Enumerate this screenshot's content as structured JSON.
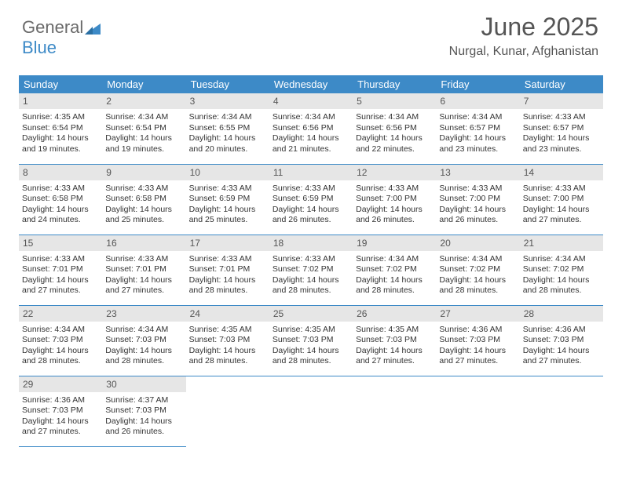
{
  "logo": {
    "text1": "General",
    "text2": "Blue"
  },
  "header": {
    "title": "June 2025",
    "subtitle": "Nurgal, Kunar, Afghanistan"
  },
  "colors": {
    "brand": "#3d8ac7",
    "daynum_bg": "#e6e6e6",
    "text": "#3a3a3a",
    "background": "#ffffff"
  },
  "typography": {
    "title_fontsize": 32,
    "subtitle_fontsize": 16,
    "header_fontsize": 13,
    "cell_fontsize": 10.5
  },
  "weekdays": [
    "Sunday",
    "Monday",
    "Tuesday",
    "Wednesday",
    "Thursday",
    "Friday",
    "Saturday"
  ],
  "days": [
    {
      "n": 1,
      "sunrise": "4:35 AM",
      "sunset": "6:54 PM",
      "day_h": 14,
      "day_m": 19
    },
    {
      "n": 2,
      "sunrise": "4:34 AM",
      "sunset": "6:54 PM",
      "day_h": 14,
      "day_m": 19
    },
    {
      "n": 3,
      "sunrise": "4:34 AM",
      "sunset": "6:55 PM",
      "day_h": 14,
      "day_m": 20
    },
    {
      "n": 4,
      "sunrise": "4:34 AM",
      "sunset": "6:56 PM",
      "day_h": 14,
      "day_m": 21
    },
    {
      "n": 5,
      "sunrise": "4:34 AM",
      "sunset": "6:56 PM",
      "day_h": 14,
      "day_m": 22
    },
    {
      "n": 6,
      "sunrise": "4:34 AM",
      "sunset": "6:57 PM",
      "day_h": 14,
      "day_m": 23
    },
    {
      "n": 7,
      "sunrise": "4:33 AM",
      "sunset": "6:57 PM",
      "day_h": 14,
      "day_m": 23
    },
    {
      "n": 8,
      "sunrise": "4:33 AM",
      "sunset": "6:58 PM",
      "day_h": 14,
      "day_m": 24
    },
    {
      "n": 9,
      "sunrise": "4:33 AM",
      "sunset": "6:58 PM",
      "day_h": 14,
      "day_m": 25
    },
    {
      "n": 10,
      "sunrise": "4:33 AM",
      "sunset": "6:59 PM",
      "day_h": 14,
      "day_m": 25
    },
    {
      "n": 11,
      "sunrise": "4:33 AM",
      "sunset": "6:59 PM",
      "day_h": 14,
      "day_m": 26
    },
    {
      "n": 12,
      "sunrise": "4:33 AM",
      "sunset": "7:00 PM",
      "day_h": 14,
      "day_m": 26
    },
    {
      "n": 13,
      "sunrise": "4:33 AM",
      "sunset": "7:00 PM",
      "day_h": 14,
      "day_m": 26
    },
    {
      "n": 14,
      "sunrise": "4:33 AM",
      "sunset": "7:00 PM",
      "day_h": 14,
      "day_m": 27
    },
    {
      "n": 15,
      "sunrise": "4:33 AM",
      "sunset": "7:01 PM",
      "day_h": 14,
      "day_m": 27
    },
    {
      "n": 16,
      "sunrise": "4:33 AM",
      "sunset": "7:01 PM",
      "day_h": 14,
      "day_m": 27
    },
    {
      "n": 17,
      "sunrise": "4:33 AM",
      "sunset": "7:01 PM",
      "day_h": 14,
      "day_m": 28
    },
    {
      "n": 18,
      "sunrise": "4:33 AM",
      "sunset": "7:02 PM",
      "day_h": 14,
      "day_m": 28
    },
    {
      "n": 19,
      "sunrise": "4:34 AM",
      "sunset": "7:02 PM",
      "day_h": 14,
      "day_m": 28
    },
    {
      "n": 20,
      "sunrise": "4:34 AM",
      "sunset": "7:02 PM",
      "day_h": 14,
      "day_m": 28
    },
    {
      "n": 21,
      "sunrise": "4:34 AM",
      "sunset": "7:02 PM",
      "day_h": 14,
      "day_m": 28
    },
    {
      "n": 22,
      "sunrise": "4:34 AM",
      "sunset": "7:03 PM",
      "day_h": 14,
      "day_m": 28
    },
    {
      "n": 23,
      "sunrise": "4:34 AM",
      "sunset": "7:03 PM",
      "day_h": 14,
      "day_m": 28
    },
    {
      "n": 24,
      "sunrise": "4:35 AM",
      "sunset": "7:03 PM",
      "day_h": 14,
      "day_m": 28
    },
    {
      "n": 25,
      "sunrise": "4:35 AM",
      "sunset": "7:03 PM",
      "day_h": 14,
      "day_m": 28
    },
    {
      "n": 26,
      "sunrise": "4:35 AM",
      "sunset": "7:03 PM",
      "day_h": 14,
      "day_m": 27
    },
    {
      "n": 27,
      "sunrise": "4:36 AM",
      "sunset": "7:03 PM",
      "day_h": 14,
      "day_m": 27
    },
    {
      "n": 28,
      "sunrise": "4:36 AM",
      "sunset": "7:03 PM",
      "day_h": 14,
      "day_m": 27
    },
    {
      "n": 29,
      "sunrise": "4:36 AM",
      "sunset": "7:03 PM",
      "day_h": 14,
      "day_m": 27
    },
    {
      "n": 30,
      "sunrise": "4:37 AM",
      "sunset": "7:03 PM",
      "day_h": 14,
      "day_m": 26
    }
  ],
  "labels": {
    "sunrise_prefix": "Sunrise: ",
    "sunset_prefix": "Sunset: ",
    "daylight_prefix": "Daylight: ",
    "hours_word": " hours",
    "and_word": "and ",
    "minutes_word": " minutes."
  }
}
